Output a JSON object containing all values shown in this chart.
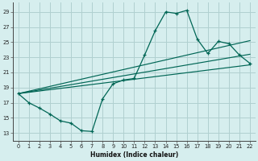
{
  "xlabel": "Humidex (Indice chaleur)",
  "bg_color": "#d6eeee",
  "grid_color": "#b0d0d0",
  "line_color": "#006655",
  "xlim": [
    -0.5,
    22.5
  ],
  "ylim": [
    12.0,
    30.2
  ],
  "yticks": [
    13,
    15,
    17,
    19,
    21,
    23,
    25,
    27,
    29
  ],
  "xticks": [
    0,
    1,
    2,
    3,
    4,
    5,
    6,
    7,
    8,
    9,
    10,
    11,
    12,
    13,
    14,
    15,
    16,
    17,
    18,
    19,
    20,
    21,
    22
  ],
  "curve1_x": [
    0,
    1,
    2,
    3,
    4,
    5,
    6,
    7,
    8,
    9,
    10,
    11,
    12,
    13,
    14,
    15,
    16,
    17,
    18,
    19,
    20,
    21,
    22
  ],
  "curve1_y": [
    18.2,
    17.0,
    16.3,
    15.5,
    14.6,
    14.3,
    13.3,
    13.2,
    17.5,
    19.5,
    20.0,
    20.2,
    23.3,
    26.5,
    29.0,
    28.8,
    29.2,
    25.4,
    23.5,
    25.1,
    24.8,
    23.3,
    22.2
  ],
  "line1_x": [
    0,
    22
  ],
  "line1_y": [
    18.2,
    22.0
  ],
  "line2_x": [
    0,
    22
  ],
  "line2_y": [
    18.2,
    25.2
  ],
  "line3_x": [
    0,
    22
  ],
  "line3_y": [
    18.2,
    23.4
  ]
}
